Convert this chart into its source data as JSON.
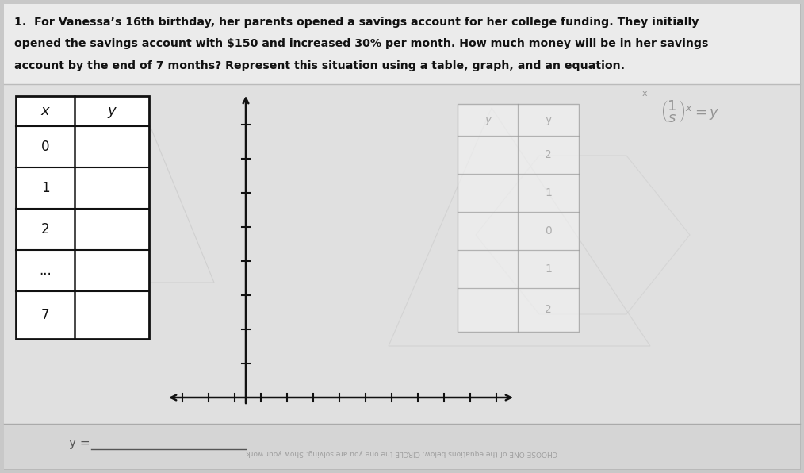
{
  "problem_text_line1": "1.  For Vanessa’s 16th birthday, her parents opened a savings account for her college funding. They initially",
  "problem_text_line2": "opened the savings account with $150 and increased 30% per month. How much money will be in her savings",
  "problem_text_line3": "account by the end of 7 months? Represent this situation using a table, graph, and an equation.",
  "table_x_label": "x",
  "table_y_label": "y",
  "table_x_values": [
    "0",
    "1",
    "2",
    "...",
    "7"
  ],
  "bg_color": "#c8c8c8",
  "paper_color": "#e8e8e8",
  "white_paper_color": "#f2f2f2",
  "text_color": "#111111",
  "table_border_color": "#111111",
  "axis_color": "#111111",
  "faded_color": "#b8b8b8",
  "ghost_pencil_color": "#999999",
  "bottom_bar_color": "#d0d0d0"
}
